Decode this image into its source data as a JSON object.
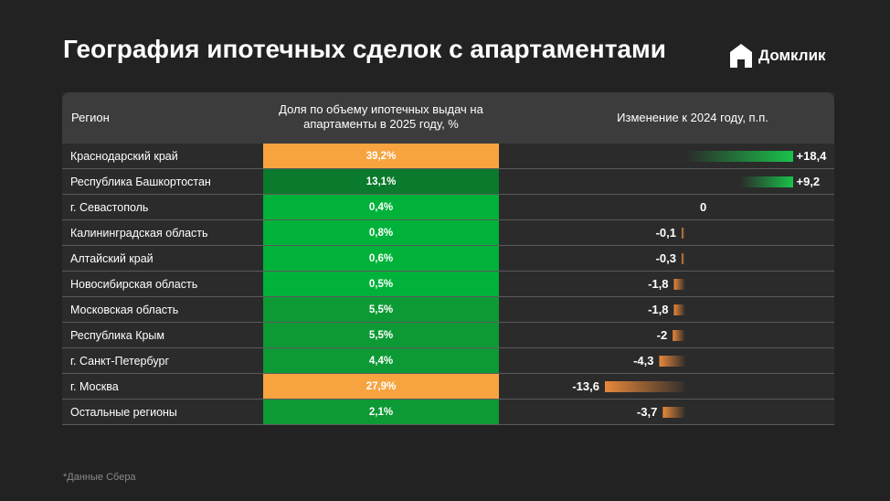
{
  "title": "География ипотечных сделок с апартаментами",
  "brand": {
    "name": "Домклик",
    "icon": "domclick-house-logo"
  },
  "footnote": "*Данные Сбера",
  "colors": {
    "highlight_orange": "#f7a440",
    "green_bright": "#00b23a",
    "green_mid": "#0d9a35",
    "green_dark": "#0a7a2c",
    "negative_bar": "#e8883a"
  },
  "chart_data": {
    "type": "table",
    "columns": [
      "Регион",
      "Доля по объему ипотечных выдач на апартаменты в 2025 году, %",
      "Изменение к 2024 году, п.п."
    ],
    "rows": [
      {
        "region": "Краснодарский край",
        "share": "39,2%",
        "share_value": 39.2,
        "change": "+18,4",
        "change_value": 18.4
      },
      {
        "region": "Республика Башкортостан",
        "share": "13,1%",
        "share_value": 13.1,
        "change": "+9,2",
        "change_value": 9.2
      },
      {
        "region": "г. Севастополь",
        "share": "0,4%",
        "share_value": 0.4,
        "change": "0",
        "change_value": 0
      },
      {
        "region": "Калининградская область",
        "share": "0,8%",
        "share_value": 0.8,
        "change": "-0,1",
        "change_value": -0.1
      },
      {
        "region": "Алтайский край",
        "share": "0,6%",
        "share_value": 0.6,
        "change": "-0,3",
        "change_value": -0.3
      },
      {
        "region": "Новосибирская область",
        "share": "0,5%",
        "share_value": 0.5,
        "change": "-1,8",
        "change_value": -1.8
      },
      {
        "region": "Московская область",
        "share": "5,5%",
        "share_value": 5.5,
        "change": "-1,8",
        "change_value": -1.8
      },
      {
        "region": "Республика Крым",
        "share": "5,5%",
        "share_value": 5.5,
        "change": "-2",
        "change_value": -2
      },
      {
        "region": "г. Санкт-Петербург",
        "share": "4,4%",
        "share_value": 4.4,
        "change": "-4,3",
        "change_value": -4.3
      },
      {
        "region": "г. Москва",
        "share": "27,9%",
        "share_value": 27.9,
        "change": "-13,6",
        "change_value": -13.6
      },
      {
        "region": "Остальные регионы",
        "share": "2,1%",
        "share_value": 2.1,
        "change": "-3,7",
        "change_value": -3.7
      }
    ]
  }
}
